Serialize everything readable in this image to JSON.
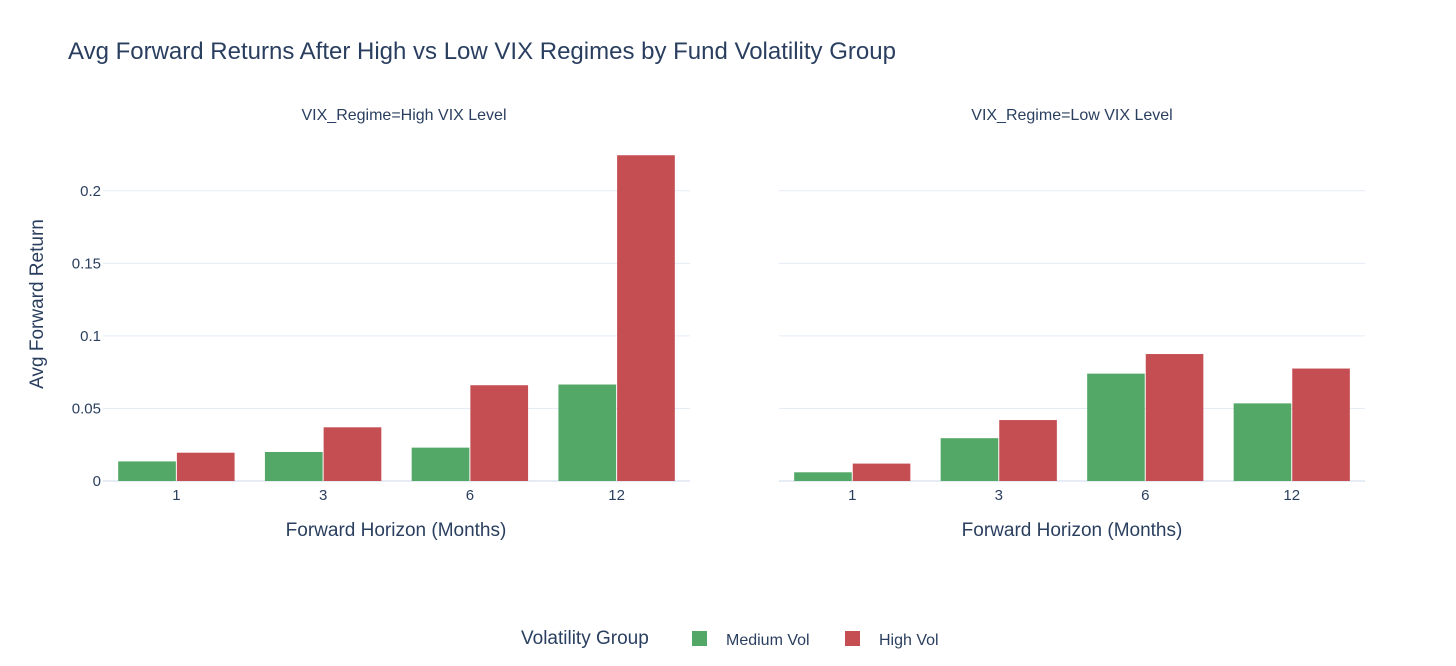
{
  "chart_data": {
    "type": "bar",
    "title": "Avg Forward Returns After High vs Low VIX Regimes by Fund Volatility Group",
    "ylabel": "Avg Forward Return",
    "xlabel": "Forward Horizon (Months)",
    "ylim": [
      0,
      0.235
    ],
    "yticks": [
      0,
      0.05,
      0.1,
      0.15,
      0.2
    ],
    "ytick_labels": [
      "0",
      "0.05",
      "0.1",
      "0.15",
      "0.2"
    ],
    "grid": true,
    "legend": {
      "title": "Volatility Group",
      "placement": "bottom-center",
      "entries": [
        "Medium Vol",
        "High Vol"
      ]
    },
    "series_colors": {
      "Medium Vol": "#54a867",
      "High Vol": "#c44e52"
    },
    "panels": [
      {
        "subtitle": "VIX_Regime=High VIX Level",
        "categories": [
          "1",
          "3",
          "6",
          "12"
        ],
        "series": [
          {
            "name": "Medium Vol",
            "values": [
              0.0135,
              0.02,
              0.023,
              0.0665
            ]
          },
          {
            "name": "High Vol",
            "values": [
              0.0195,
              0.037,
              0.066,
              0.2245
            ]
          }
        ]
      },
      {
        "subtitle": "VIX_Regime=Low VIX Level",
        "categories": [
          "1",
          "3",
          "6",
          "12"
        ],
        "series": [
          {
            "name": "Medium Vol",
            "values": [
              0.006,
              0.0295,
              0.074,
              0.0535
            ]
          },
          {
            "name": "High Vol",
            "values": [
              0.012,
              0.042,
              0.0875,
              0.0775
            ]
          }
        ]
      }
    ]
  }
}
